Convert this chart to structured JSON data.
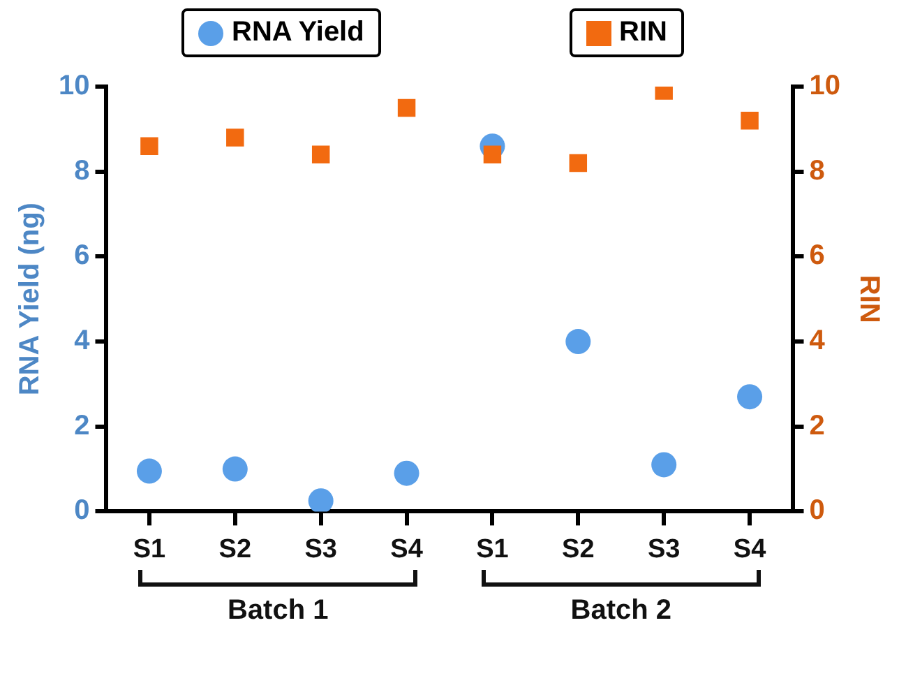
{
  "chart_data": {
    "type": "scatter",
    "categories": [
      "S1",
      "S2",
      "S3",
      "S4",
      "S1",
      "S2",
      "S3",
      "S4"
    ],
    "ylabel": "RNA Yield (ng)",
    "y2label": "RIN",
    "ylim": [
      0,
      10
    ],
    "yticks": [
      0,
      2,
      4,
      6,
      8,
      10
    ],
    "y2lim": [
      0,
      10
    ],
    "y2ticks": [
      0,
      2,
      4,
      6,
      8,
      10
    ],
    "series": [
      {
        "name": "RNA Yield",
        "color": "#5a9fe8",
        "marker": "circle",
        "values": [
          0.95,
          1.0,
          0.25,
          0.9,
          8.6,
          4.0,
          1.1,
          2.7
        ]
      },
      {
        "name": "RIN",
        "color": "#f26a10",
        "marker": "square",
        "axis": "y2",
        "values": [
          8.6,
          8.8,
          8.4,
          9.5,
          8.4,
          8.2,
          9.9,
          9.2
        ]
      }
    ],
    "annotations": [
      "Batch 1",
      "Batch 2"
    ],
    "legend": "top",
    "grid": false
  }
}
